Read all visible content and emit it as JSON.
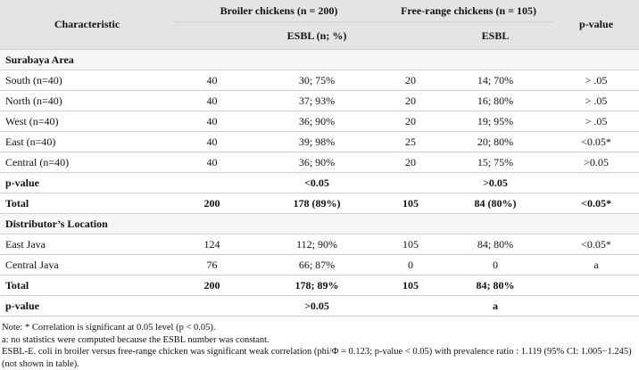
{
  "header": {
    "characteristic": "Characteristic",
    "broiler": "Broiler chickens (n = 200)",
    "free_range": "Free-range chickens (n = 105)",
    "p_value": "p-value",
    "esbl_broiler": "ESBL (n; %)",
    "esbl_free": "ESBL"
  },
  "rows": [
    {
      "section": "Surabaya Area"
    },
    {
      "cells": [
        "South (n=40)",
        "40",
        "30; 75%",
        "20",
        "14; 70%",
        "> .05"
      ]
    },
    {
      "cells": [
        "North (n=40)",
        "40",
        "37; 93%",
        "20",
        "16; 80%",
        "> .05"
      ]
    },
    {
      "cells": [
        "West (n=40)",
        "40",
        "36; 90%",
        "20",
        "19; 95%",
        "> .05"
      ]
    },
    {
      "cells": [
        "East (n=40)",
        "40",
        "39; 98%",
        "25",
        "20; 80%",
        "<0.05*"
      ]
    },
    {
      "cells": [
        "Central (n=40)",
        "40",
        "36; 90%",
        "20",
        "15; 75%",
        ">0.05"
      ]
    },
    {
      "cells": [
        "p-value",
        null,
        "<0.05",
        null,
        ">0.05",
        null
      ],
      "bold": true
    },
    {
      "cells": [
        "Total",
        "200",
        "178 (89%)",
        "105",
        "84 (80%)",
        "<0.05*"
      ],
      "bold": true
    },
    {
      "section": "Distributor’s Location"
    },
    {
      "cells": [
        "East Java",
        "124",
        "112; 90%",
        "105",
        "84; 80%",
        "<0.05*"
      ]
    },
    {
      "cells": [
        "Central Java",
        "76",
        "66; 87%",
        "0",
        "0",
        "a"
      ]
    },
    {
      "cells": [
        "Total",
        "200",
        "178; 89%",
        "105",
        "84; 80%",
        null
      ],
      "bold": true
    },
    {
      "cells": [
        "p-value",
        null,
        ">0.05",
        null,
        "a",
        null
      ],
      "bold": true
    }
  ],
  "notes": [
    "Note: * Correlation is significant at 0.05 level (p < 0.05).",
    "a: no statistics were computed because the ESBL number was constant.",
    "ESBL-E. coli in broiler versus free-range chicken was significant weak correlation (phi/Φ = 0.123; p-value < 0.05) with prevalence ratio : 1.119 (95% CI: 1.005−1.245) (not shown in table)."
  ]
}
